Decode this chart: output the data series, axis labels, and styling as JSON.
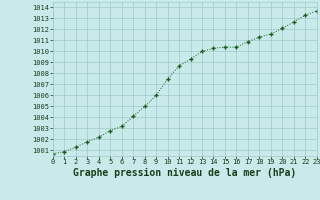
{
  "x": [
    0,
    1,
    2,
    3,
    4,
    5,
    6,
    7,
    8,
    9,
    10,
    11,
    12,
    13,
    14,
    15,
    16,
    17,
    18,
    19,
    20,
    21,
    22,
    23
  ],
  "y": [
    1000.7,
    1000.9,
    1001.3,
    1001.8,
    1002.2,
    1002.8,
    1003.2,
    1004.1,
    1005.0,
    1006.0,
    1007.5,
    1008.7,
    1009.3,
    1010.0,
    1010.3,
    1010.4,
    1010.4,
    1010.9,
    1011.3,
    1011.6,
    1012.1,
    1012.7,
    1013.3,
    1013.7
  ],
  "xlim": [
    0,
    23
  ],
  "ylim": [
    1000.5,
    1014.5
  ],
  "yticks": [
    1001,
    1002,
    1003,
    1004,
    1005,
    1006,
    1007,
    1008,
    1009,
    1010,
    1011,
    1012,
    1013,
    1014
  ],
  "xticks": [
    0,
    1,
    2,
    3,
    4,
    5,
    6,
    7,
    8,
    9,
    10,
    11,
    12,
    13,
    14,
    15,
    16,
    17,
    18,
    19,
    20,
    21,
    22,
    23
  ],
  "xlabel": "Graphe pression niveau de la mer (hPa)",
  "line_color": "#1a5c1a",
  "marker_color": "#1a5c1a",
  "bg_color": "#c8eaea",
  "grid_color": "#a0c8c8",
  "text_color": "#1a3c1a",
  "tick_fontsize": 5.0,
  "xlabel_fontsize": 7.0
}
